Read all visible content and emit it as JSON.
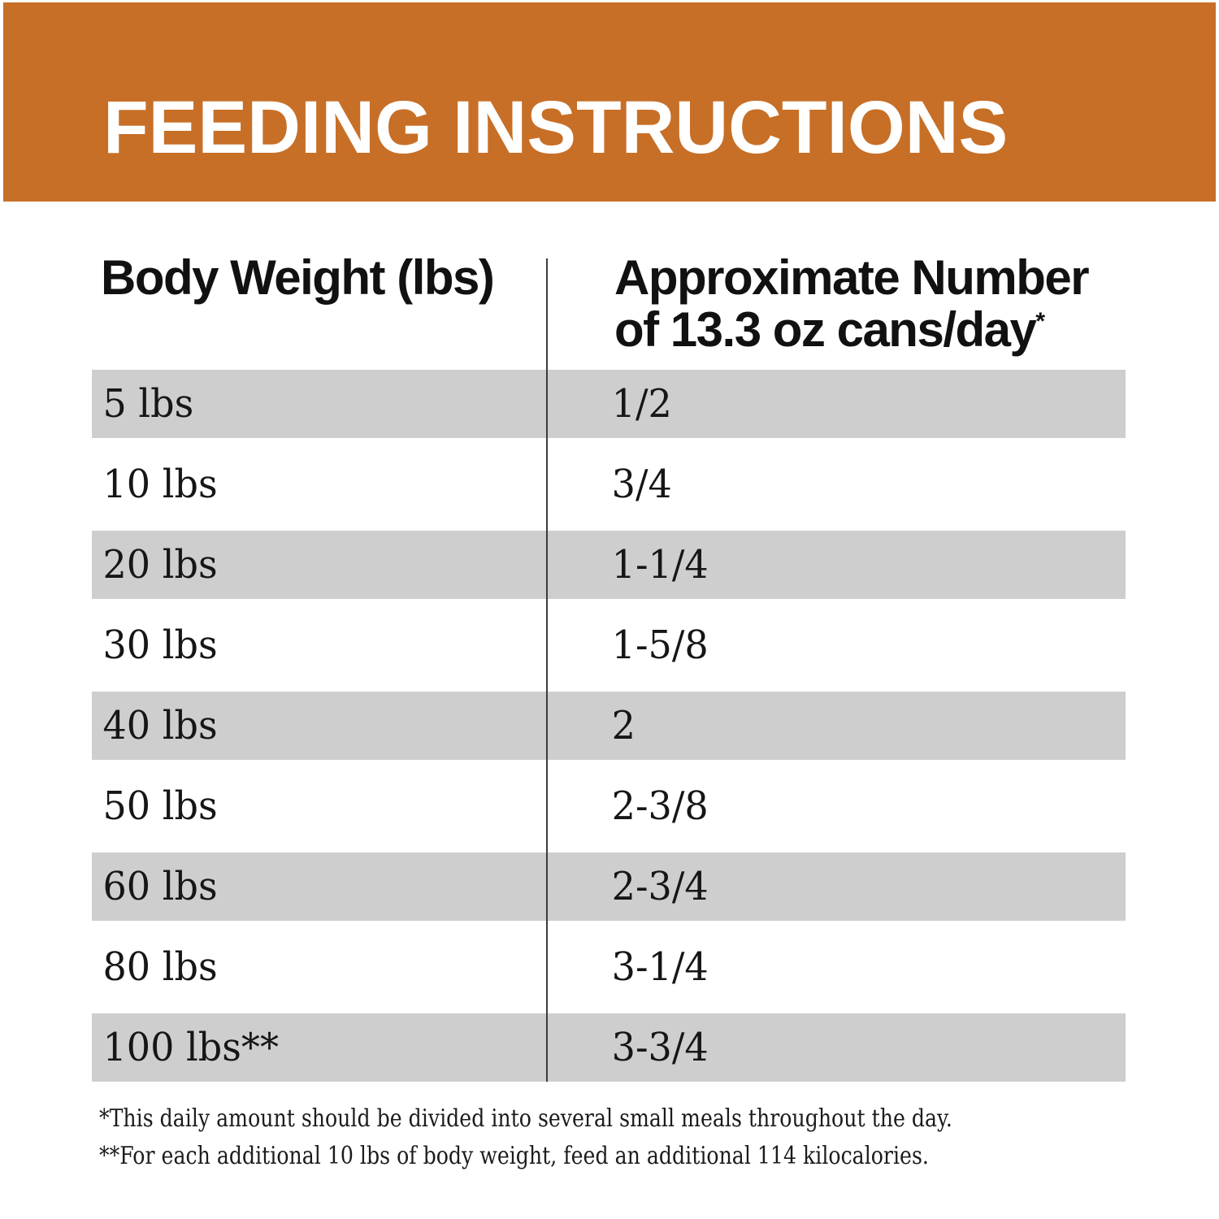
{
  "banner": {
    "title": "FEEDING INSTRUCTIONS",
    "bg_color": "#c76f27",
    "text_color": "#ffffff"
  },
  "table": {
    "stripe_color": "#cecece",
    "columns": {
      "weight_label": "Body Weight (lbs)",
      "cans_label_line1": "Approximate Number",
      "cans_label_line2": "of 13.3 oz cans/day",
      "cans_label_superscript": "*"
    },
    "rows": [
      {
        "weight": "5 lbs",
        "cans": "1/2"
      },
      {
        "weight": "10 lbs",
        "cans": "3/4"
      },
      {
        "weight": "20 lbs",
        "cans": "1-1/4"
      },
      {
        "weight": "30 lbs",
        "cans": "1-5/8"
      },
      {
        "weight": "40 lbs",
        "cans": "2"
      },
      {
        "weight": "50 lbs",
        "cans": "2-3/8"
      },
      {
        "weight": "60 lbs",
        "cans": "2-3/4"
      },
      {
        "weight": "80 lbs",
        "cans": "3-1/4"
      },
      {
        "weight": "100 lbs**",
        "cans": "3-3/4"
      }
    ]
  },
  "footnotes": [
    "*This daily amount should be divided into several small meals throughout the day.",
    "**For each additional 10 lbs of body weight, feed an additional 114 kilocalories."
  ]
}
